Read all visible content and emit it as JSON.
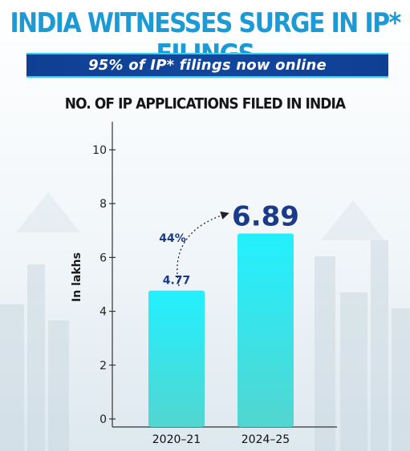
{
  "headline": "INDIA WITNESSES SURGE IN IP* FILINGS",
  "banner": "95% of IP* filings now online",
  "colors": {
    "headline": "#1b9ad6",
    "banner_bg": "#0f3f93",
    "bar_top": "#22f0ff",
    "bar_bottom": "#52d6d0",
    "value_label": "#1a3a8a"
  },
  "chart_data": {
    "type": "bar",
    "title": "NO. OF IP APPLICATIONS FILED IN INDIA",
    "ylabel": "In lakhs",
    "xlabel": "",
    "categories": [
      "2020–21",
      "2024–25"
    ],
    "values": [
      4.77,
      6.89
    ],
    "data_labels": [
      "4.77",
      "6.89"
    ],
    "ylim": [
      0,
      10
    ],
    "yticks": [
      0,
      2,
      4,
      6,
      8,
      10
    ],
    "grid": false,
    "annotation": {
      "text": "44%",
      "from": "2020–21",
      "to": "2024–25"
    }
  }
}
